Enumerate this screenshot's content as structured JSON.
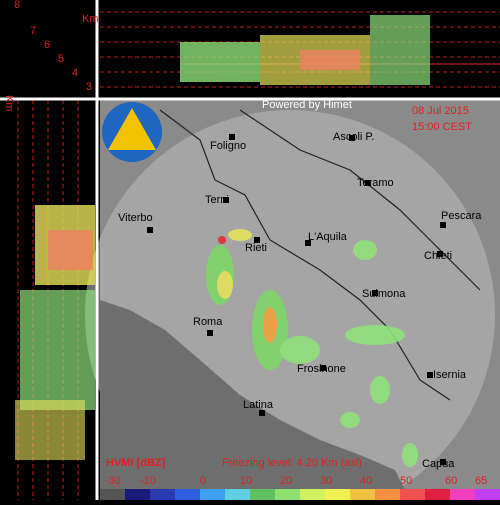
{
  "top_panel": {
    "unit": "Km",
    "heights": [
      "8",
      "7",
      "6",
      "5",
      "4",
      "3"
    ]
  },
  "left_panel": {
    "unit": "Km"
  },
  "map": {
    "credit": "Powered by Himet",
    "date": "08 Jul 2015",
    "time": "15:00 CEST",
    "cities": [
      "Foligno",
      "Ascoli P.",
      "Teramo",
      "Terni",
      "Viterbo",
      "Pescara",
      "L'Aquila",
      "Rieti",
      "Chieti",
      "Sulmona",
      "Roma",
      "Frosinone",
      "Isernia",
      "Latina",
      "Capua"
    ]
  },
  "legend": {
    "title": "HVMI [dBZ]",
    "freezing_level": "Freezing level: 4.20 Km (asl)",
    "ticks": [
      "-30",
      "-10",
      "0",
      "10",
      "20",
      "30",
      "40",
      "50",
      "60",
      "65"
    ]
  }
}
